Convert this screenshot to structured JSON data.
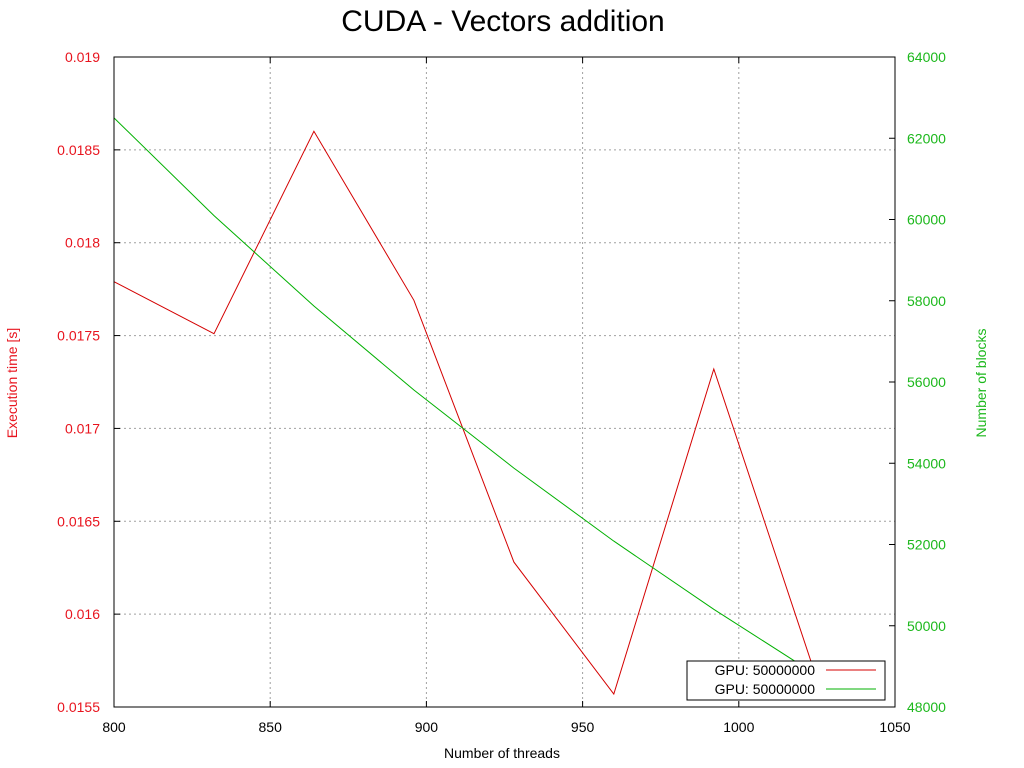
{
  "chart_data": {
    "type": "line",
    "title": "CUDA - Vectors addition",
    "xlabel": "Number of threads",
    "ylabel": "Execution time [s]",
    "y2label": "Number of blocks",
    "xlim": [
      800,
      1050
    ],
    "ylim": [
      0.0155,
      0.019
    ],
    "y2lim": [
      48000,
      64000
    ],
    "x_ticks": [
      "800",
      "850",
      "900",
      "950",
      "1000",
      "1050"
    ],
    "y_ticks": [
      "0.0155",
      "0.016",
      "0.0165",
      "0.017",
      "0.0175",
      "0.018",
      "0.0185",
      "0.019"
    ],
    "y2_ticks": [
      "48000",
      "50000",
      "52000",
      "54000",
      "56000",
      "58000",
      "60000",
      "62000",
      "64000"
    ],
    "grid": true,
    "legend_position": "bottom-right",
    "colors": {
      "left_axis": "#e8141e",
      "right_axis": "#1cb81c",
      "series1": "#d40000",
      "series2": "#00b000",
      "grid": "#a0a0a0"
    },
    "series": [
      {
        "name": "GPU: 50000000",
        "axis": "left",
        "x": [
          800,
          832,
          864,
          896,
          928,
          960,
          992,
          1024
        ],
        "values": [
          0.01779,
          0.01751,
          0.0186,
          0.01769,
          0.01628,
          0.01557,
          0.01732,
          0.0157
        ]
      },
      {
        "name": "GPU: 50000000",
        "axis": "right",
        "x": [
          800,
          832,
          864,
          896,
          928,
          960,
          992,
          1024
        ],
        "values": [
          62500,
          60096,
          57871,
          55804,
          53880,
          52084,
          50404,
          48829
        ]
      }
    ]
  }
}
